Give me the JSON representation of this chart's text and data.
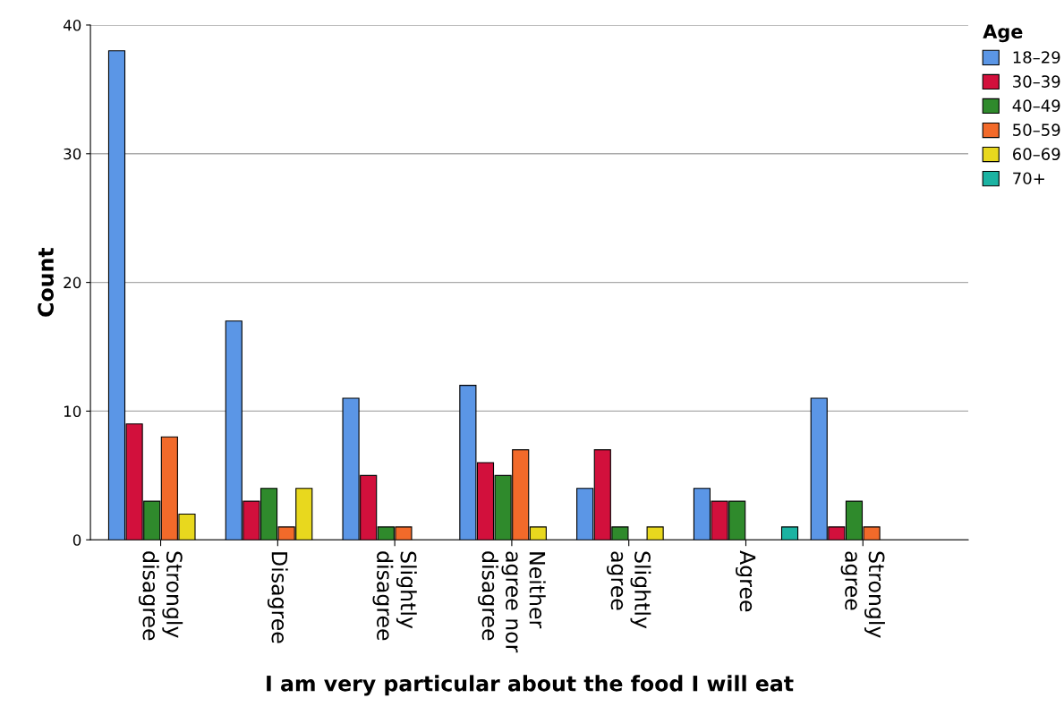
{
  "chart_data": {
    "type": "bar",
    "xlabel": "I am very particular about the food I will eat",
    "ylabel": "Count",
    "legend_title": "Age",
    "categories": [
      "Strongly\ndisagree",
      "Disagree",
      "Slightly\ndisagree",
      "Neither\nagree nor\ndisagree",
      "Slightly\nagree",
      "Agree",
      "Strongly\nagree"
    ],
    "series": [
      {
        "name": "18–29",
        "color": "#5b96e6",
        "values": [
          38,
          17,
          11,
          12,
          4,
          4,
          11
        ]
      },
      {
        "name": "30–39",
        "color": "#d2103c",
        "values": [
          9,
          3,
          5,
          6,
          7,
          3,
          1
        ]
      },
      {
        "name": "40–49",
        "color": "#2f8a2c",
        "values": [
          3,
          4,
          1,
          5,
          1,
          3,
          3
        ]
      },
      {
        "name": "50–59",
        "color": "#f26a2a",
        "values": [
          8,
          1,
          1,
          7,
          null,
          null,
          1
        ]
      },
      {
        "name": "60–69",
        "color": "#e8d81e",
        "values": [
          2,
          4,
          null,
          1,
          1,
          null,
          null
        ]
      },
      {
        "name": "70+",
        "color": "#1bb3a2",
        "values": [
          null,
          null,
          null,
          null,
          null,
          1,
          null
        ]
      }
    ],
    "ylim": [
      0,
      40
    ],
    "yticks": [
      0,
      10,
      20,
      30,
      40
    ],
    "grid": "y",
    "legend": "top right"
  }
}
